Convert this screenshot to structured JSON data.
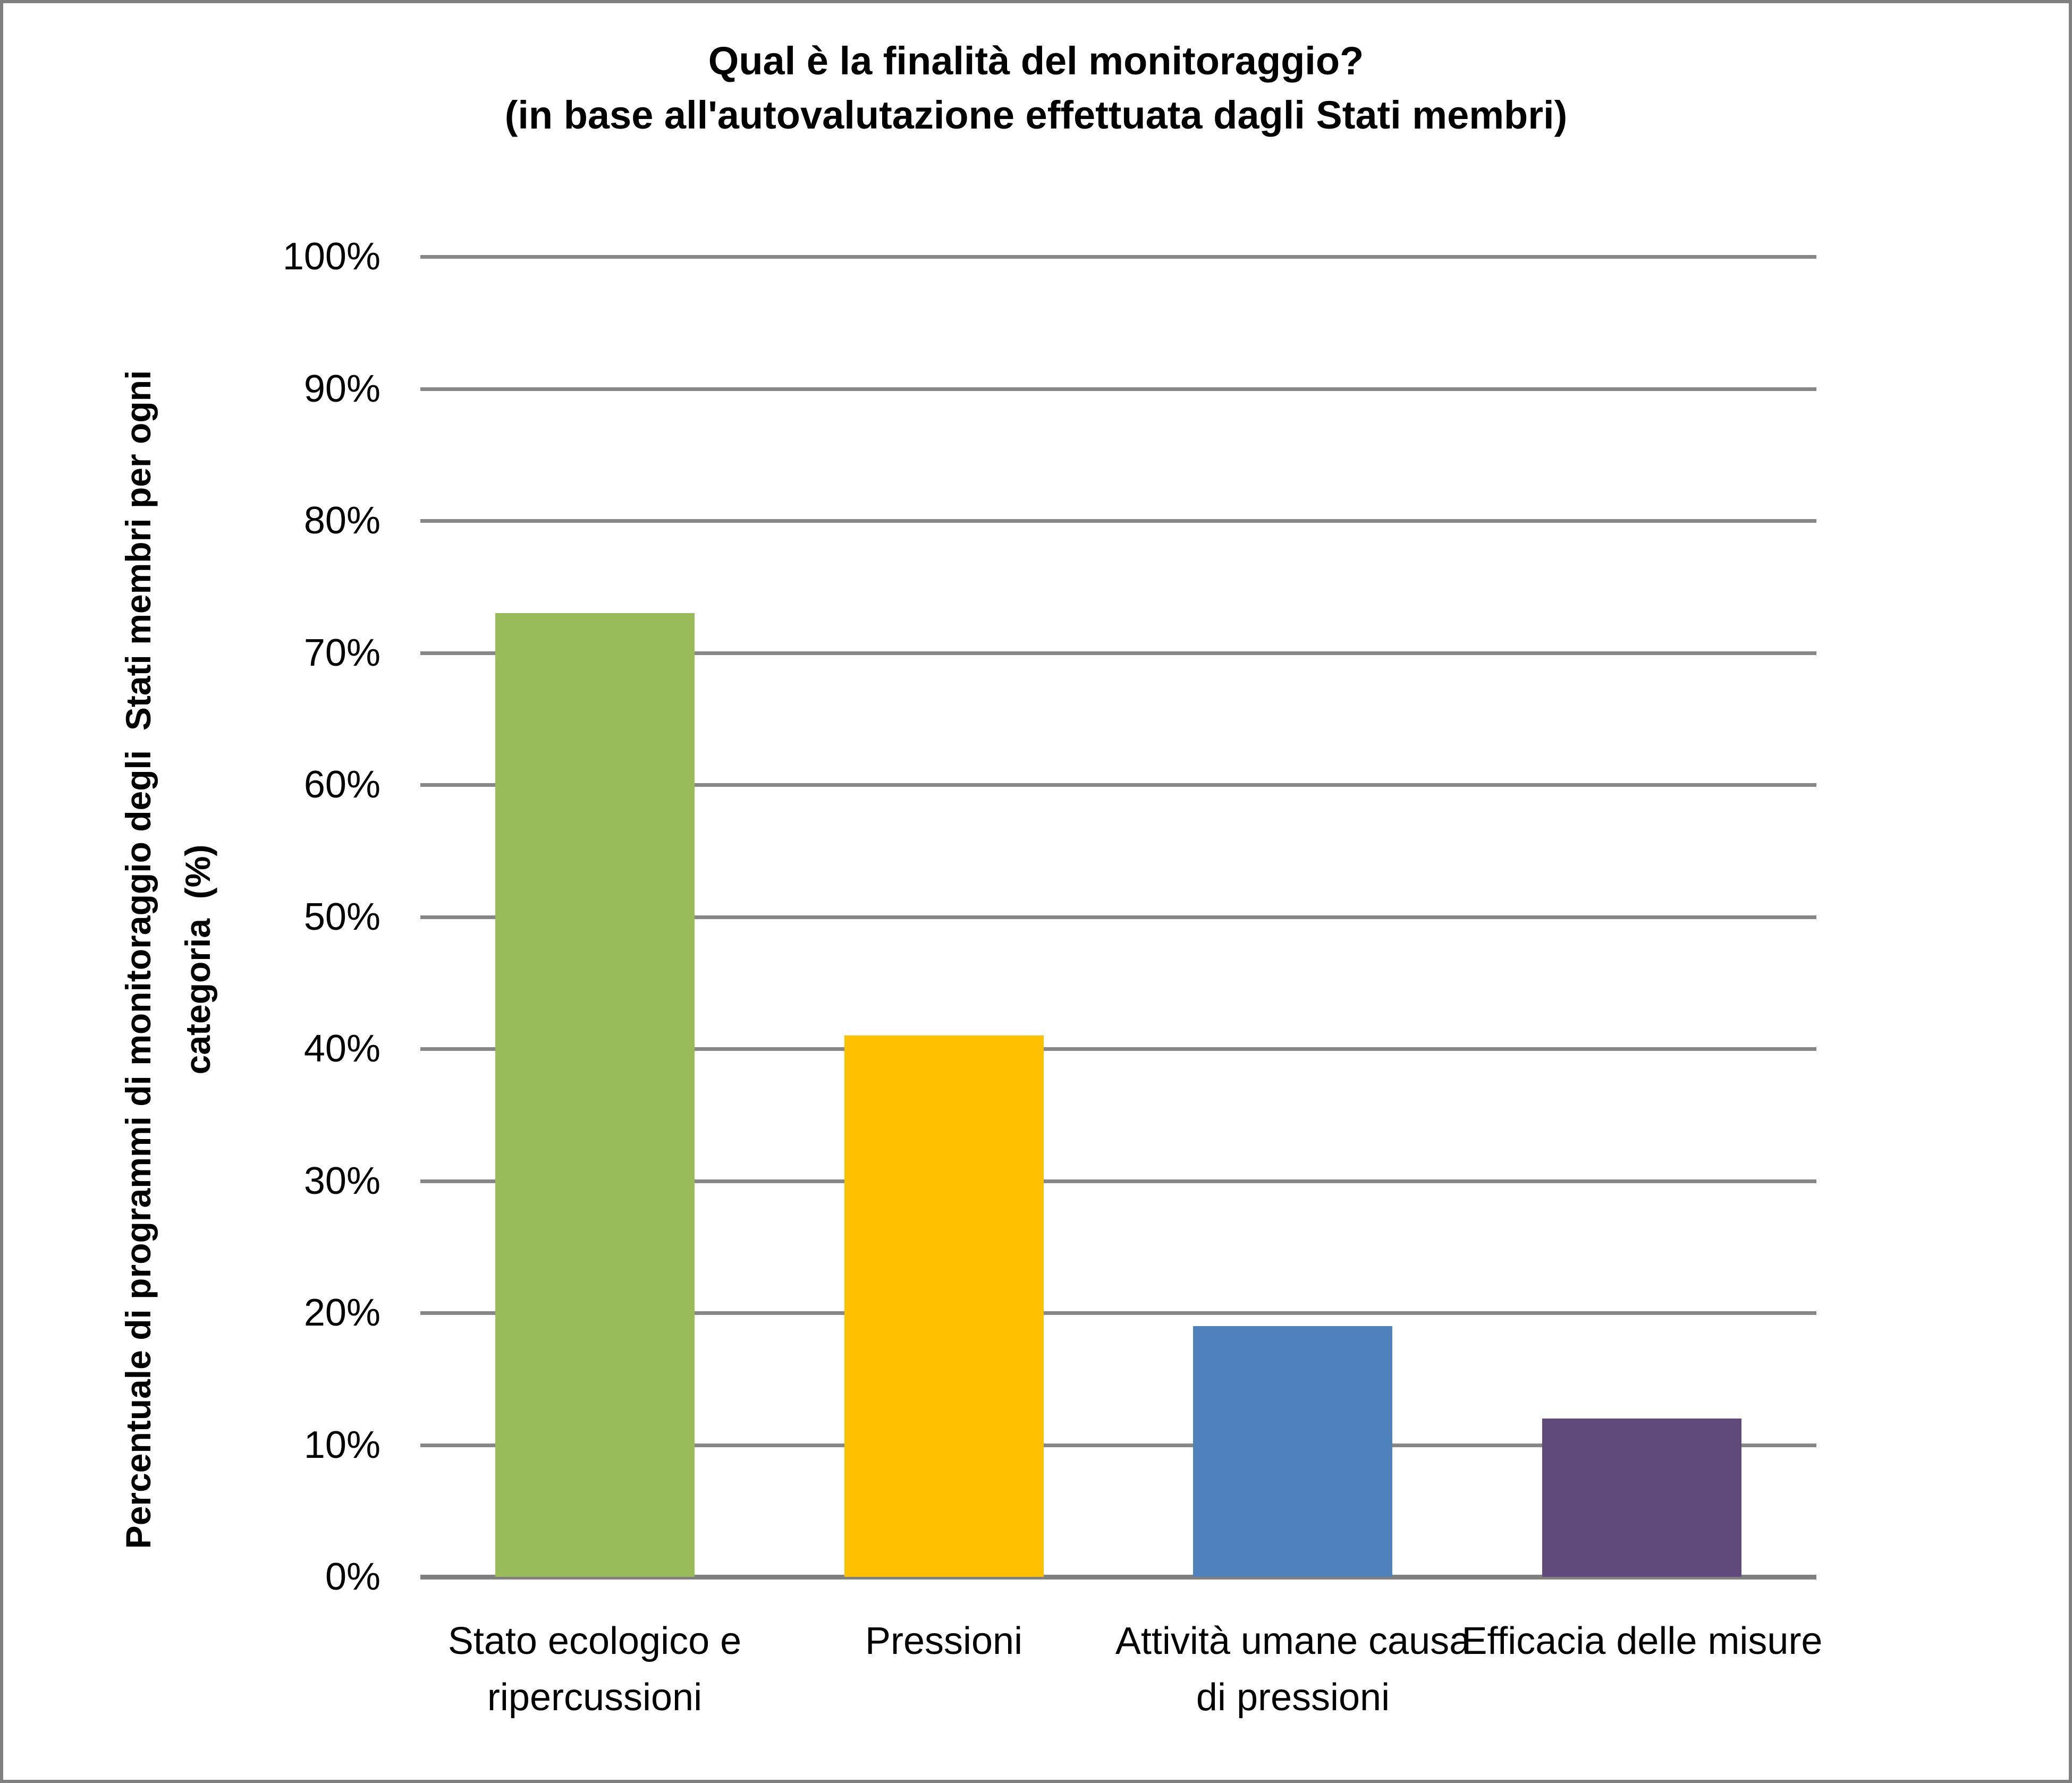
{
  "title": {
    "line1": "Qual è la finalità del monitoraggio?",
    "line2": "(in base all'autovalutazione effettuata dagli Stati membri)"
  },
  "chart_data": {
    "type": "bar",
    "title": "Qual è la finalità del monitoraggio? (in base all'autovalutazione effettuata dagli Stati membri)",
    "categories": [
      "Stato ecologico e ripercussioni",
      "Pressioni",
      "Attività umane causa di pressioni",
      "Efficacia delle misure"
    ],
    "values": [
      73,
      41,
      19,
      12
    ],
    "unit": "%",
    "bar_colors": [
      "#9ABB59",
      "#FFC000",
      "#4F81BD",
      "#5F497A"
    ],
    "xlabel": "",
    "ylabel": "Percentuale di programmi di monitoraggio degli  Stati membri per ogni categoria  (%)",
    "ylabel_lines": [
      "Percentuale di programmi di monitoraggio degli  Stati membri per ogni",
      "categoria  (%)"
    ],
    "ylim": [
      0,
      100
    ],
    "ytick_step": 10,
    "ytick_labels": [
      "100%",
      "90%",
      "80%",
      "70%",
      "60%",
      "50%",
      "40%",
      "30%",
      "20%",
      "10%",
      "0%"
    ],
    "grid": true,
    "legend": "none",
    "gridline_color": "#878787",
    "axis_color": "#808080",
    "background": "#FFFFFF",
    "border_color": "#808080",
    "text_color": "#000000"
  }
}
